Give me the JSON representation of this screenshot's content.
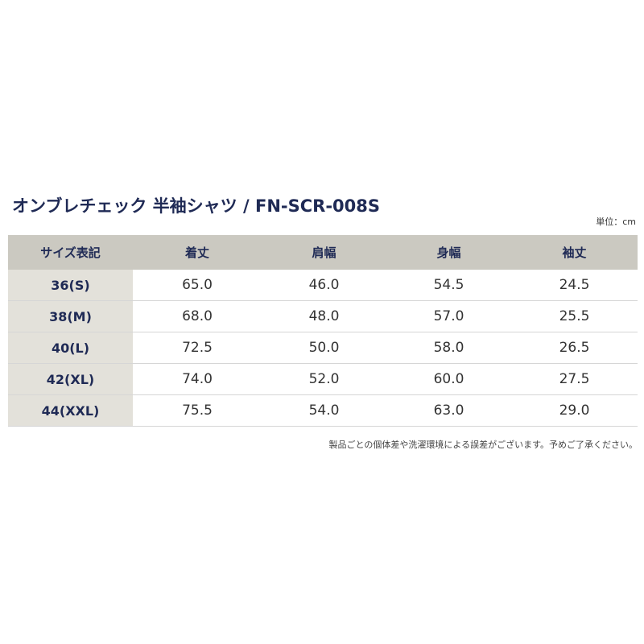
{
  "title": "オンブレチェック 半袖シャツ / FN-SCR-008S",
  "unit": "単位：cm",
  "table": {
    "header": [
      "サイズ表記",
      "着丈",
      "肩幅",
      "身幅",
      "袖丈"
    ],
    "rows": [
      [
        "36(S)",
        "65.0",
        "46.0",
        "54.5",
        "24.5"
      ],
      [
        "38(M)",
        "68.0",
        "48.0",
        "57.0",
        "25.5"
      ],
      [
        "40(L)",
        "72.5",
        "50.0",
        "58.0",
        "26.5"
      ],
      [
        "42(XL)",
        "74.0",
        "52.0",
        "60.0",
        "27.5"
      ],
      [
        "44(XXL)",
        "75.5",
        "54.0",
        "63.0",
        "29.0"
      ]
    ]
  },
  "note": "製品ごとの個体差や洗濯環境による誤差がございます。予めご了承ください。"
}
